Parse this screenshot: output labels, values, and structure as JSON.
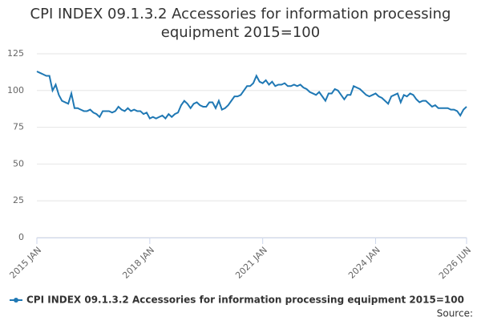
{
  "chart_data": {
    "type": "line",
    "title": "CPI INDEX 09.1.3.2 Accessories for information processing equipment 2015=100",
    "source": "Source:",
    "categories": [
      "2015 JAN",
      null,
      null,
      null,
      null,
      null,
      null,
      null,
      null,
      null,
      null,
      null,
      null,
      null,
      null,
      null,
      null,
      null,
      null,
      null,
      null,
      null,
      null,
      null,
      null,
      null,
      null,
      null,
      null,
      null,
      null,
      null,
      null,
      null,
      null,
      null,
      "2018 JAN",
      null,
      null,
      null,
      null,
      null,
      null,
      null,
      null,
      null,
      null,
      null,
      null,
      null,
      null,
      null,
      null,
      null,
      null,
      null,
      null,
      null,
      null,
      null,
      null,
      null,
      null,
      null,
      null,
      null,
      null,
      null,
      null,
      null,
      null,
      null,
      "2021 JAN",
      null,
      null,
      null,
      null,
      null,
      null,
      null,
      null,
      null,
      null,
      null,
      null,
      null,
      null,
      null,
      null,
      null,
      null,
      null,
      null,
      null,
      null,
      null,
      null,
      null,
      null,
      null,
      null,
      null,
      null,
      null,
      null,
      null,
      null,
      null,
      "2024 JAN",
      null,
      null,
      null,
      null,
      null,
      null,
      null,
      null,
      null,
      null,
      null,
      null,
      null,
      null,
      null,
      null,
      null,
      null,
      null,
      null,
      null,
      null,
      null,
      null,
      null,
      null,
      null,
      null,
      "2026 JUN"
    ],
    "series": [
      {
        "name": "CPI INDEX 09.1.3.2 Accessories for information processing equipment 2015=100",
        "color": "#1f78b4",
        "values": [
          113,
          112,
          111,
          110,
          110,
          100,
          104,
          97,
          93,
          92,
          91,
          98,
          88,
          88,
          87,
          86,
          86,
          87,
          85,
          84,
          82,
          86,
          86,
          86,
          85,
          86,
          89,
          87,
          86,
          88,
          86,
          87,
          86,
          86,
          84,
          85,
          81,
          82,
          81,
          82,
          83,
          81,
          84,
          82,
          84,
          85,
          90,
          93,
          91,
          88,
          91,
          92,
          90,
          89,
          89,
          92,
          92,
          88,
          93,
          87,
          88,
          90,
          93,
          96,
          96,
          97,
          100,
          103,
          103,
          105,
          110,
          106,
          105,
          107,
          104,
          106,
          103,
          104,
          104,
          105,
          103,
          103,
          104,
          103,
          104,
          102,
          101,
          99,
          98,
          97,
          99,
          96,
          93,
          98,
          98,
          101,
          100,
          97,
          94,
          97,
          97,
          103,
          102,
          101,
          99,
          97,
          96,
          97,
          98,
          96,
          95,
          93,
          91,
          96,
          97,
          98,
          92,
          97,
          96,
          98,
          97,
          94,
          92,
          93,
          93,
          91,
          89,
          90,
          88,
          88,
          88,
          88,
          87,
          87,
          86,
          83,
          87,
          89
        ]
      }
    ],
    "ylim": [
      0,
      125
    ],
    "yticks": [
      0,
      25,
      50,
      75,
      100,
      125
    ],
    "grid": true
  }
}
